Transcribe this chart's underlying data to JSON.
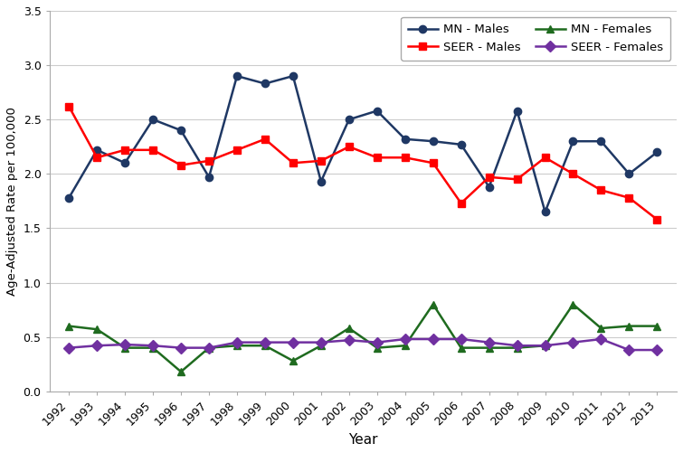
{
  "years": [
    1992,
    1993,
    1994,
    1995,
    1996,
    1997,
    1998,
    1999,
    2000,
    2001,
    2002,
    2003,
    2004,
    2005,
    2006,
    2007,
    2008,
    2009,
    2010,
    2011,
    2012,
    2013
  ],
  "mn_males": [
    1.78,
    2.22,
    2.1,
    2.5,
    2.4,
    1.97,
    2.9,
    2.83,
    2.9,
    1.93,
    2.5,
    2.58,
    2.32,
    2.3,
    2.27,
    1.88,
    2.58,
    1.65,
    2.3,
    2.3,
    2.0,
    2.2
  ],
  "seer_males": [
    2.62,
    2.15,
    2.22,
    2.22,
    2.08,
    2.12,
    2.22,
    2.32,
    2.1,
    2.12,
    2.25,
    2.15,
    2.15,
    2.1,
    1.73,
    1.97,
    1.95,
    2.15,
    2.0,
    1.85,
    1.78,
    1.58
  ],
  "mn_females": [
    0.6,
    0.57,
    0.4,
    0.4,
    0.18,
    0.4,
    0.42,
    0.42,
    0.28,
    0.42,
    0.58,
    0.4,
    0.42,
    0.8,
    0.4,
    0.4,
    0.4,
    0.42,
    0.8,
    0.58,
    0.6,
    0.6
  ],
  "seer_females": [
    0.4,
    0.42,
    0.43,
    0.42,
    0.4,
    0.4,
    0.45,
    0.45,
    0.45,
    0.45,
    0.47,
    0.45,
    0.48,
    0.48,
    0.48,
    0.45,
    0.42,
    0.42,
    0.45,
    0.48,
    0.38,
    0.38
  ],
  "mn_males_color": "#1F3864",
  "seer_males_color": "#FF0000",
  "mn_females_color": "#1F6B1F",
  "seer_females_color": "#7030A0",
  "ylabel": "Age-Adjusted Rate per 100,000",
  "xlabel": "Year",
  "ylim": [
    0.0,
    3.5
  ],
  "yticks": [
    0.0,
    0.5,
    1.0,
    1.5,
    2.0,
    2.5,
    3.0,
    3.5
  ],
  "bg_color": "#FFFFFF",
  "grid_color": "#CCCCCC"
}
